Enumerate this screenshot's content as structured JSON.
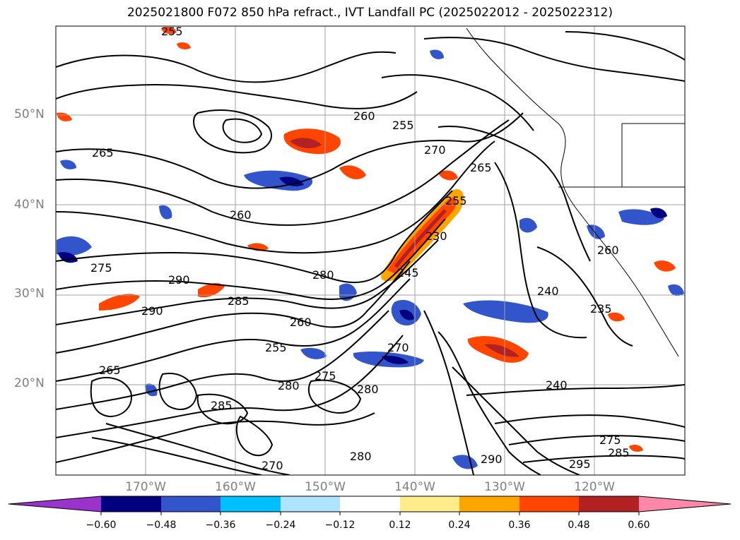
{
  "title": "2025021800 F072 850 hPa refract., IVT Landfall PC (2025022012 - 2025022312)",
  "lat_labels": [
    "50°N",
    "40°N",
    "30°N",
    "20°N"
  ],
  "lon_labels": [
    "170°W",
    "160°W",
    "150°W",
    "140°W",
    "130°W",
    "120°W"
  ],
  "contour_labels": [
    "265",
    "255",
    "260",
    "255",
    "270",
    "265",
    "260",
    "255",
    "275",
    "280",
    "290",
    "245",
    "230",
    "260",
    "240",
    "235",
    "285",
    "290",
    "270",
    "255",
    "260",
    "275",
    "280",
    "240",
    "285",
    "275",
    "285",
    "280",
    "290",
    "295",
    "270",
    "280",
    "265"
  ],
  "colorbar": {
    "ticks": [
      "−0.60",
      "−0.48",
      "−0.36",
      "−0.24",
      "−0.12",
      "0.12",
      "0.24",
      "0.36",
      "0.48",
      "0.60"
    ],
    "colors": [
      "#9933cc",
      "#000080",
      "#3355cc",
      "#00bfff",
      "#aee4ff",
      "#ffffff",
      "#ffec8b",
      "#ffa500",
      "#ff4500",
      "#b22222",
      "#ff88aa",
      "#ff88aa"
    ]
  },
  "palette": {
    "contour": "#000000",
    "grid": "#a0a0a0"
  }
}
